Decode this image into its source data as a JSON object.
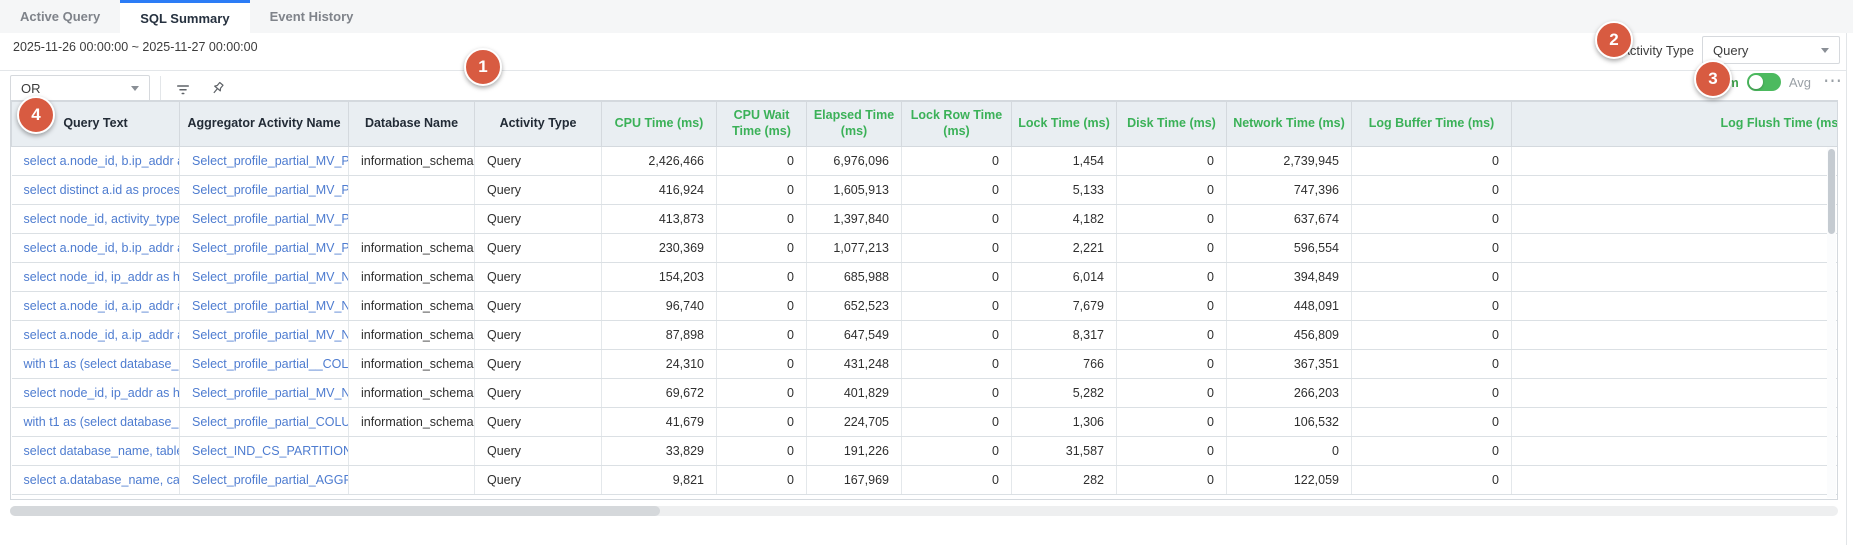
{
  "tabs": [
    {
      "label": "Active Query",
      "active": false
    },
    {
      "label": "SQL Summary",
      "active": true
    },
    {
      "label": "Event History",
      "active": false
    }
  ],
  "filters": {
    "date_range": "2025-11-26 00:00:00 ~ 2025-11-27 00:00:00",
    "logic_operator": "OR",
    "activity_type_label": "Activity Type",
    "activity_type_value": "Query"
  },
  "aggregate_toggle": {
    "left_label": "Sum",
    "right_label": "Avg",
    "selected": "Sum",
    "more_icon": "⋯"
  },
  "callouts": [
    "1",
    "2",
    "3",
    "4"
  ],
  "table": {
    "columns": [
      {
        "label": "Query Text",
        "numeric": false,
        "link": true
      },
      {
        "label": "Aggregator Activity Name",
        "numeric": false,
        "link": true
      },
      {
        "label": "Database Name",
        "numeric": false,
        "link": false
      },
      {
        "label": "Activity Type",
        "numeric": false,
        "link": false
      },
      {
        "label": "CPU Time (ms)",
        "numeric": true,
        "link": false
      },
      {
        "label": "CPU Wait Time (ms)",
        "numeric": true,
        "link": false
      },
      {
        "label": "Elapsed Time (ms)",
        "numeric": true,
        "link": false
      },
      {
        "label": "Lock Row Time (ms)",
        "numeric": true,
        "link": false
      },
      {
        "label": "Lock Time (ms)",
        "numeric": true,
        "link": false
      },
      {
        "label": "Disk Time (ms)",
        "numeric": true,
        "link": false
      },
      {
        "label": "Network Time (ms)",
        "numeric": true,
        "link": false
      },
      {
        "label": "Log Buffer Time (ms)",
        "numeric": true,
        "link": false
      },
      {
        "label": "Log Flush Time (ms)",
        "numeric": true,
        "link": false
      }
    ],
    "rows": [
      [
        "select a.node_id, b.ip_addr as ...",
        "Select_profile_partial_MV_PE...",
        "information_schema",
        "Query",
        "2,426,466",
        "0",
        "6,976,096",
        "0",
        "1,454",
        "0",
        "2,739,945",
        "0",
        ""
      ],
      [
        "select distinct a.id as process...",
        "Select_profile_partial_MV_PE...",
        "",
        "Query",
        "416,924",
        "0",
        "1,605,913",
        "0",
        "5,133",
        "0",
        "747,396",
        "0",
        ""
      ],
      [
        "select node_id, activity_type, a...",
        "Select_profile_partial_MV_PE...",
        "",
        "Query",
        "413,873",
        "0",
        "1,397,840",
        "0",
        "4,182",
        "0",
        "637,674",
        "0",
        ""
      ],
      [
        "select a.node_id, b.ip_addr as ...",
        "Select_profile_partial_MV_PE...",
        "information_schema",
        "Query",
        "230,369",
        "0",
        "1,077,213",
        "0",
        "2,221",
        "0",
        "596,554",
        "0",
        ""
      ],
      [
        "select node_id, ip_addr as hos...",
        "Select_profile_partial_MV_NO...",
        "information_schema",
        "Query",
        "154,203",
        "0",
        "685,988",
        "0",
        "6,014",
        "0",
        "394,849",
        "0",
        ""
      ],
      [
        "select a.node_id, a.ip_addr as ...",
        "Select_profile_partial_MV_NO...",
        "information_schema",
        "Query",
        "96,740",
        "0",
        "652,523",
        "0",
        "7,679",
        "0",
        "448,091",
        "0",
        ""
      ],
      [
        "select a.node_id, a.ip_addr as ...",
        "Select_profile_partial_MV_NO...",
        "information_schema",
        "Query",
        "87,898",
        "0",
        "647,549",
        "0",
        "8,317",
        "0",
        "456,809",
        "0",
        ""
      ],
      [
        "with t1 as (select database_n...",
        "Select_profile_partial__COLU...",
        "information_schema",
        "Query",
        "24,310",
        "0",
        "431,248",
        "0",
        "766",
        "0",
        "367,351",
        "0",
        ""
      ],
      [
        "select node_id, ip_addr as hos...",
        "Select_profile_partial_MV_NO...",
        "information_schema",
        "Query",
        "69,672",
        "0",
        "401,829",
        "0",
        "5,282",
        "0",
        "266,203",
        "0",
        ""
      ],
      [
        "with t1 as (select database_n...",
        "Select_profile_partial_COLUM...",
        "information_schema",
        "Query",
        "41,679",
        "0",
        "224,705",
        "0",
        "1,306",
        "0",
        "106,532",
        "0",
        ""
      ],
      [
        "select database_name, table_...",
        "Select_IND_CS_PARTITION_R...",
        "",
        "Query",
        "33,829",
        "0",
        "191,226",
        "0",
        "31,587",
        "0",
        "0",
        "0",
        ""
      ],
      [
        "select a.database_name, case...",
        "Select_profile_partial_AGGRE...",
        "",
        "Query",
        "9,821",
        "0",
        "167,969",
        "0",
        "282",
        "0",
        "122,059",
        "0",
        ""
      ]
    ]
  },
  "colors": {
    "accent_blue": "#2c7cf6",
    "header_green": "#3bb158",
    "link_blue": "#4e7cd0",
    "badge_orange": "#d85b41",
    "toggle_green": "#4cba5f"
  }
}
